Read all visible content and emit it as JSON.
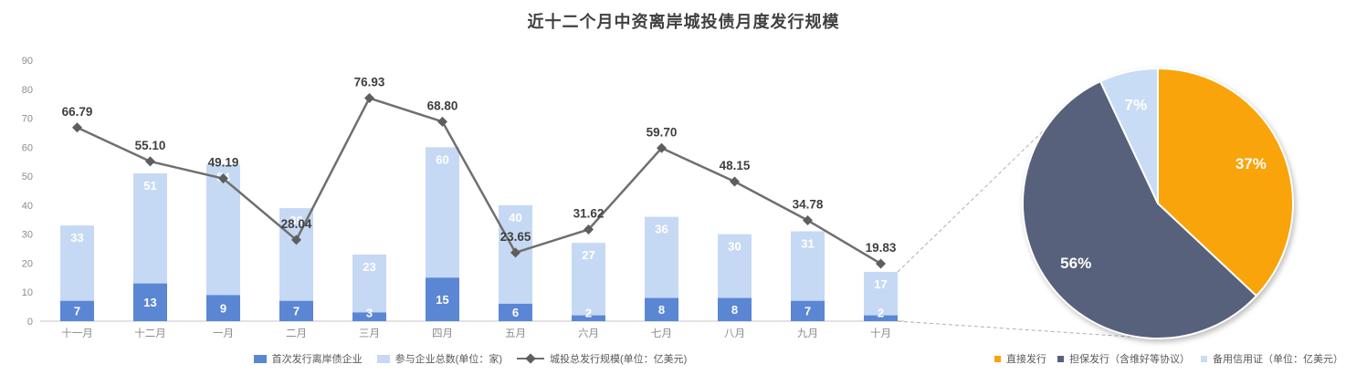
{
  "title": "近十二个月中资离岸城投债月度发行规模",
  "colors": {
    "bar_first_time": "#5B86D4",
    "bar_total": "#C6D9F4",
    "line": "#6F6F6F",
    "marker": "#5E5E5E",
    "pie": [
      "#F9A40A",
      "#57617C",
      "#C9DCF6"
    ],
    "title_text": "#404040",
    "axis_text": "#8C8C8C",
    "bar_label": "#FFFFFF",
    "line_label": "#3F3F3F",
    "pie_label": "#FFFFFF",
    "axis_line": "#D9D9D9",
    "connector": "#AFAFAF",
    "legend_text": "#595959",
    "background": "#FFFFFF"
  },
  "chart_data": [
    {
      "type": "bar",
      "subtype": "combo-bar-line",
      "title": "近十二个月中资离岸城投债月度发行规模",
      "categories": [
        "十一月",
        "十二月",
        "一月",
        "二月",
        "三月",
        "四月",
        "五月",
        "六月",
        "七月",
        "八月",
        "九月",
        "十月"
      ],
      "series": [
        {
          "name": "首次发行离岸债企业",
          "type": "bar",
          "values": [
            7,
            13,
            9,
            7,
            3,
            15,
            6,
            2,
            8,
            8,
            7,
            2
          ],
          "labels": [
            "7",
            "13",
            "9",
            "7",
            "3",
            "15",
            "6",
            "2",
            "8",
            "8",
            "7",
            "2"
          ]
        },
        {
          "name": "参与企业总数(单位：家)",
          "type": "bar",
          "values": [
            33,
            51,
            54,
            39,
            23,
            60,
            40,
            27,
            36,
            30,
            31,
            17
          ],
          "labels": [
            "33",
            "51",
            "54",
            "39",
            "23",
            "60",
            "40",
            "27",
            "36",
            "30",
            "31",
            "17"
          ]
        },
        {
          "name": "城投总发行规模(单位：亿美元)",
          "type": "line",
          "values": [
            66.79,
            55.1,
            49.19,
            28.04,
            76.93,
            68.8,
            23.65,
            31.62,
            59.7,
            48.15,
            34.78,
            19.83
          ],
          "labels": [
            "66.79",
            "55.10",
            "49.19",
            "28.04",
            "76.93",
            "68.80",
            "23.65",
            "31.62",
            "59.70",
            "48.15",
            "34.78",
            "19.83"
          ]
        }
      ],
      "ylabel": "",
      "xlabel": "",
      "ylim": [
        0,
        90
      ],
      "ytick_step": 10,
      "yticks": [
        "0",
        "10",
        "20",
        "30",
        "40",
        "50",
        "60",
        "70",
        "80",
        "90"
      ],
      "grid": false,
      "legend_position": "bottom"
    },
    {
      "type": "pie",
      "labels": [
        "直接发行",
        "担保发行（含维好等协议）",
        "备用信用证（单位：亿美元）"
      ],
      "values": [
        37,
        56,
        7
      ],
      "display_labels": [
        "37%",
        "56%",
        "7%"
      ],
      "start_angle_deg": 0,
      "direction": "clockwise",
      "legend_position": "bottom"
    }
  ],
  "legends": {
    "left": {
      "items": [
        {
          "label": "首次发行离岸债企业"
        },
        {
          "label": "参与企业总数(单位：家)"
        },
        {
          "label": "城投总发行规模(单位：亿美元)"
        }
      ]
    },
    "right": {
      "items": [
        {
          "label": "直接发行"
        },
        {
          "label": "担保发行（含维好等协议）"
        },
        {
          "label": "备用信用证（单位：亿美元）"
        }
      ]
    }
  }
}
